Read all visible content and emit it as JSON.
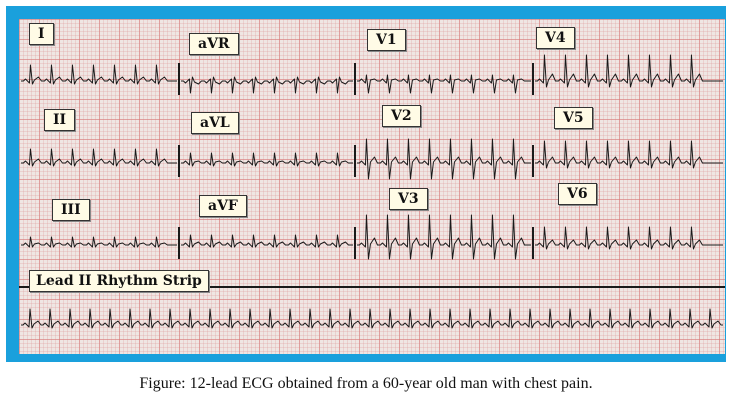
{
  "leads": {
    "I": "I",
    "aVR": "aVR",
    "V1": "V1",
    "V4": "V4",
    "II": "II",
    "aVL": "aVL",
    "V2": "V2",
    "V5": "V5",
    "III": "III",
    "aVF": "aVF",
    "V3": "V3",
    "V6": "V6"
  },
  "rhythm_strip_label": "Lead II Rhythm Strip",
  "caption": "Figure: 12-lead ECG obtained from a 60-year old man with chest pain.",
  "colors": {
    "frame": "#1aa0dc",
    "paper": "#efe6e3",
    "grid": "#d77878",
    "trace": "#1a1a1a"
  }
}
